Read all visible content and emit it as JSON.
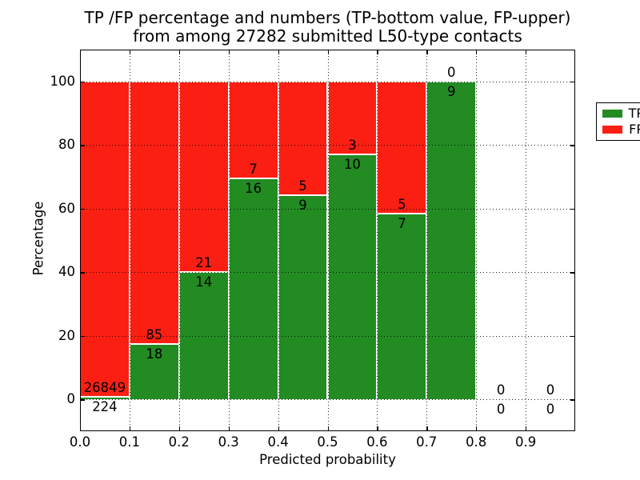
{
  "chart_data": {
    "type": "bar",
    "variant": "stacked_percentage",
    "title_lines": [
      "TP /FP percentage and numbers (TP-bottom value, FP-upper)",
      "from among 27282 submitted L50-type contacts"
    ],
    "total_submitted_contacts": 27282,
    "xlabel": "Predicted probability",
    "ylabel": "Percentage",
    "xlim": [
      0.0,
      1.0
    ],
    "ylim": [
      -10,
      110
    ],
    "grid": true,
    "grid_style": "black dotted",
    "legend_position": "upper right",
    "xticks": {
      "values": [
        0.0,
        0.1,
        0.2,
        0.3,
        0.4,
        0.5,
        0.6,
        0.7,
        0.8,
        0.9
      ],
      "labels": [
        "0.0",
        "0.1",
        "0.2",
        "0.3",
        "0.4",
        "0.5",
        "0.6",
        "0.7",
        "0.8",
        "0.9"
      ]
    },
    "yticks": {
      "values": [
        0,
        20,
        40,
        60,
        80,
        100
      ],
      "labels": [
        "0",
        "20",
        "40",
        "60",
        "80",
        "100"
      ]
    },
    "bins": [
      {
        "x0": 0.0,
        "x1": 0.1,
        "tp": 224,
        "fp": 26849
      },
      {
        "x0": 0.1,
        "x1": 0.2,
        "tp": 18,
        "fp": 85
      },
      {
        "x0": 0.2,
        "x1": 0.3,
        "tp": 14,
        "fp": 21
      },
      {
        "x0": 0.3,
        "x1": 0.4,
        "tp": 16,
        "fp": 7
      },
      {
        "x0": 0.4,
        "x1": 0.5,
        "tp": 9,
        "fp": 5
      },
      {
        "x0": 0.5,
        "x1": 0.6,
        "tp": 10,
        "fp": 3
      },
      {
        "x0": 0.6,
        "x1": 0.7,
        "tp": 7,
        "fp": 5
      },
      {
        "x0": 0.7,
        "x1": 0.8,
        "tp": 9,
        "fp": 0
      },
      {
        "x0": 0.8,
        "x1": 0.9,
        "tp": 0,
        "fp": 0
      },
      {
        "x0": 0.9,
        "x1": 1.0,
        "tp": 0,
        "fp": 0
      }
    ],
    "legend": [
      {
        "label": "TP",
        "color": "#228b22"
      },
      {
        "label": "FP",
        "color": "#fb1f13"
      }
    ],
    "colors": {
      "tp": "#228b22",
      "fp": "#fb1f13",
      "grid": "#000000",
      "text": "#000000",
      "background": "#ffffff",
      "bar_edge": "#ffffff"
    }
  }
}
